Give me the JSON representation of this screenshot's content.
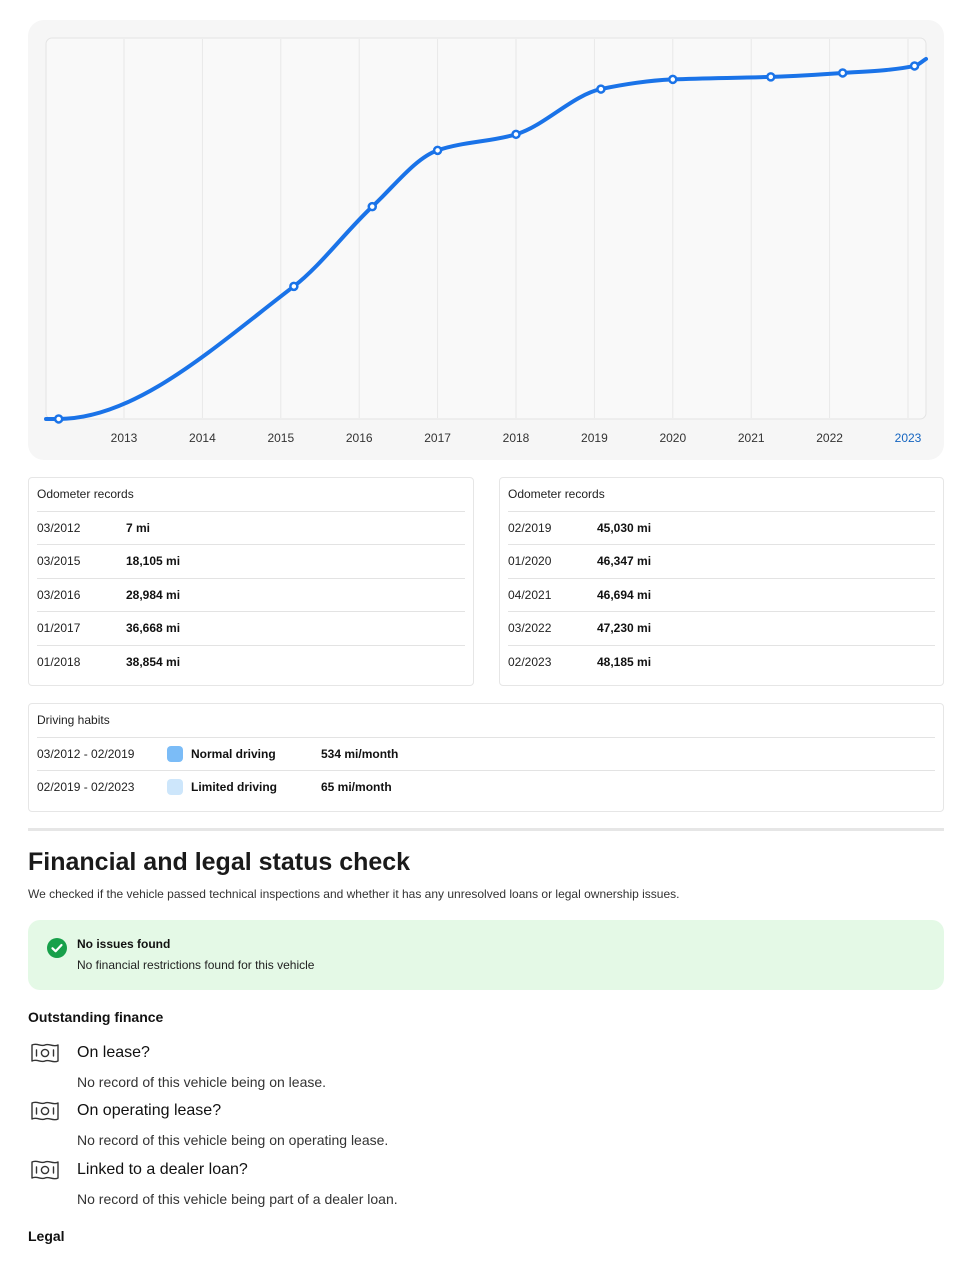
{
  "chart_data": {
    "type": "line",
    "x_ticks": [
      "2013",
      "2014",
      "2015",
      "2016",
      "2017",
      "2018",
      "2019",
      "2020",
      "2021",
      "2022",
      "2023"
    ],
    "highlight_tick": "2023",
    "points": [
      {
        "date": "03/2012",
        "miles": 7
      },
      {
        "date": "03/2015",
        "miles": 18105
      },
      {
        "date": "03/2016",
        "miles": 28984
      },
      {
        "date": "01/2017",
        "miles": 36668
      },
      {
        "date": "01/2018",
        "miles": 38854
      },
      {
        "date": "02/2019",
        "miles": 45030
      },
      {
        "date": "01/2020",
        "miles": 46347
      },
      {
        "date": "04/2021",
        "miles": 46694
      },
      {
        "date": "03/2022",
        "miles": 47230
      },
      {
        "date": "02/2023",
        "miles": 48185
      }
    ],
    "line_color": "#1a73e8",
    "highlight_color": "#1565c0",
    "grid": true
  },
  "odometer_left": {
    "header": "Odometer records",
    "rows": [
      {
        "date": "03/2012",
        "value": "7 mi"
      },
      {
        "date": "03/2015",
        "value": "18,105 mi"
      },
      {
        "date": "03/2016",
        "value": "28,984 mi"
      },
      {
        "date": "01/2017",
        "value": "36,668 mi"
      },
      {
        "date": "01/2018",
        "value": "38,854 mi"
      }
    ]
  },
  "odometer_right": {
    "header": "Odometer records",
    "rows": [
      {
        "date": "02/2019",
        "value": "45,030 mi"
      },
      {
        "date": "01/2020",
        "value": "46,347 mi"
      },
      {
        "date": "04/2021",
        "value": "46,694 mi"
      },
      {
        "date": "03/2022",
        "value": "47,230 mi"
      },
      {
        "date": "02/2023",
        "value": "48,185 mi"
      }
    ]
  },
  "driving_habits": {
    "header": "Driving habits",
    "rows": [
      {
        "period": "03/2012 - 02/2019",
        "label": "Normal driving",
        "rate": "534 mi/month",
        "color": "#7bbcf7"
      },
      {
        "period": "02/2019 - 02/2023",
        "label": "Limited driving",
        "rate": "65 mi/month",
        "color": "#cde6fb"
      }
    ]
  },
  "financial": {
    "title": "Financial and legal status check",
    "description": "We checked if the vehicle passed technical inspections and whether it has any unresolved loans or legal ownership issues.",
    "status": {
      "title": "No issues found",
      "text": "No financial restrictions found for this vehicle",
      "icon": "check-circle-icon",
      "color": "#17a04a"
    },
    "outstanding_title": "Outstanding finance",
    "items": [
      {
        "question": "On lease?",
        "answer": "No record of this vehicle being on lease.",
        "icon": "banknote-icon"
      },
      {
        "question": "On operating lease?",
        "answer": "No record of this vehicle being on operating lease.",
        "icon": "banknote-icon"
      },
      {
        "question": "Linked to a dealer loan?",
        "answer": "No record of this vehicle being part of a dealer loan.",
        "icon": "banknote-icon"
      }
    ],
    "legal_title": "Legal"
  }
}
